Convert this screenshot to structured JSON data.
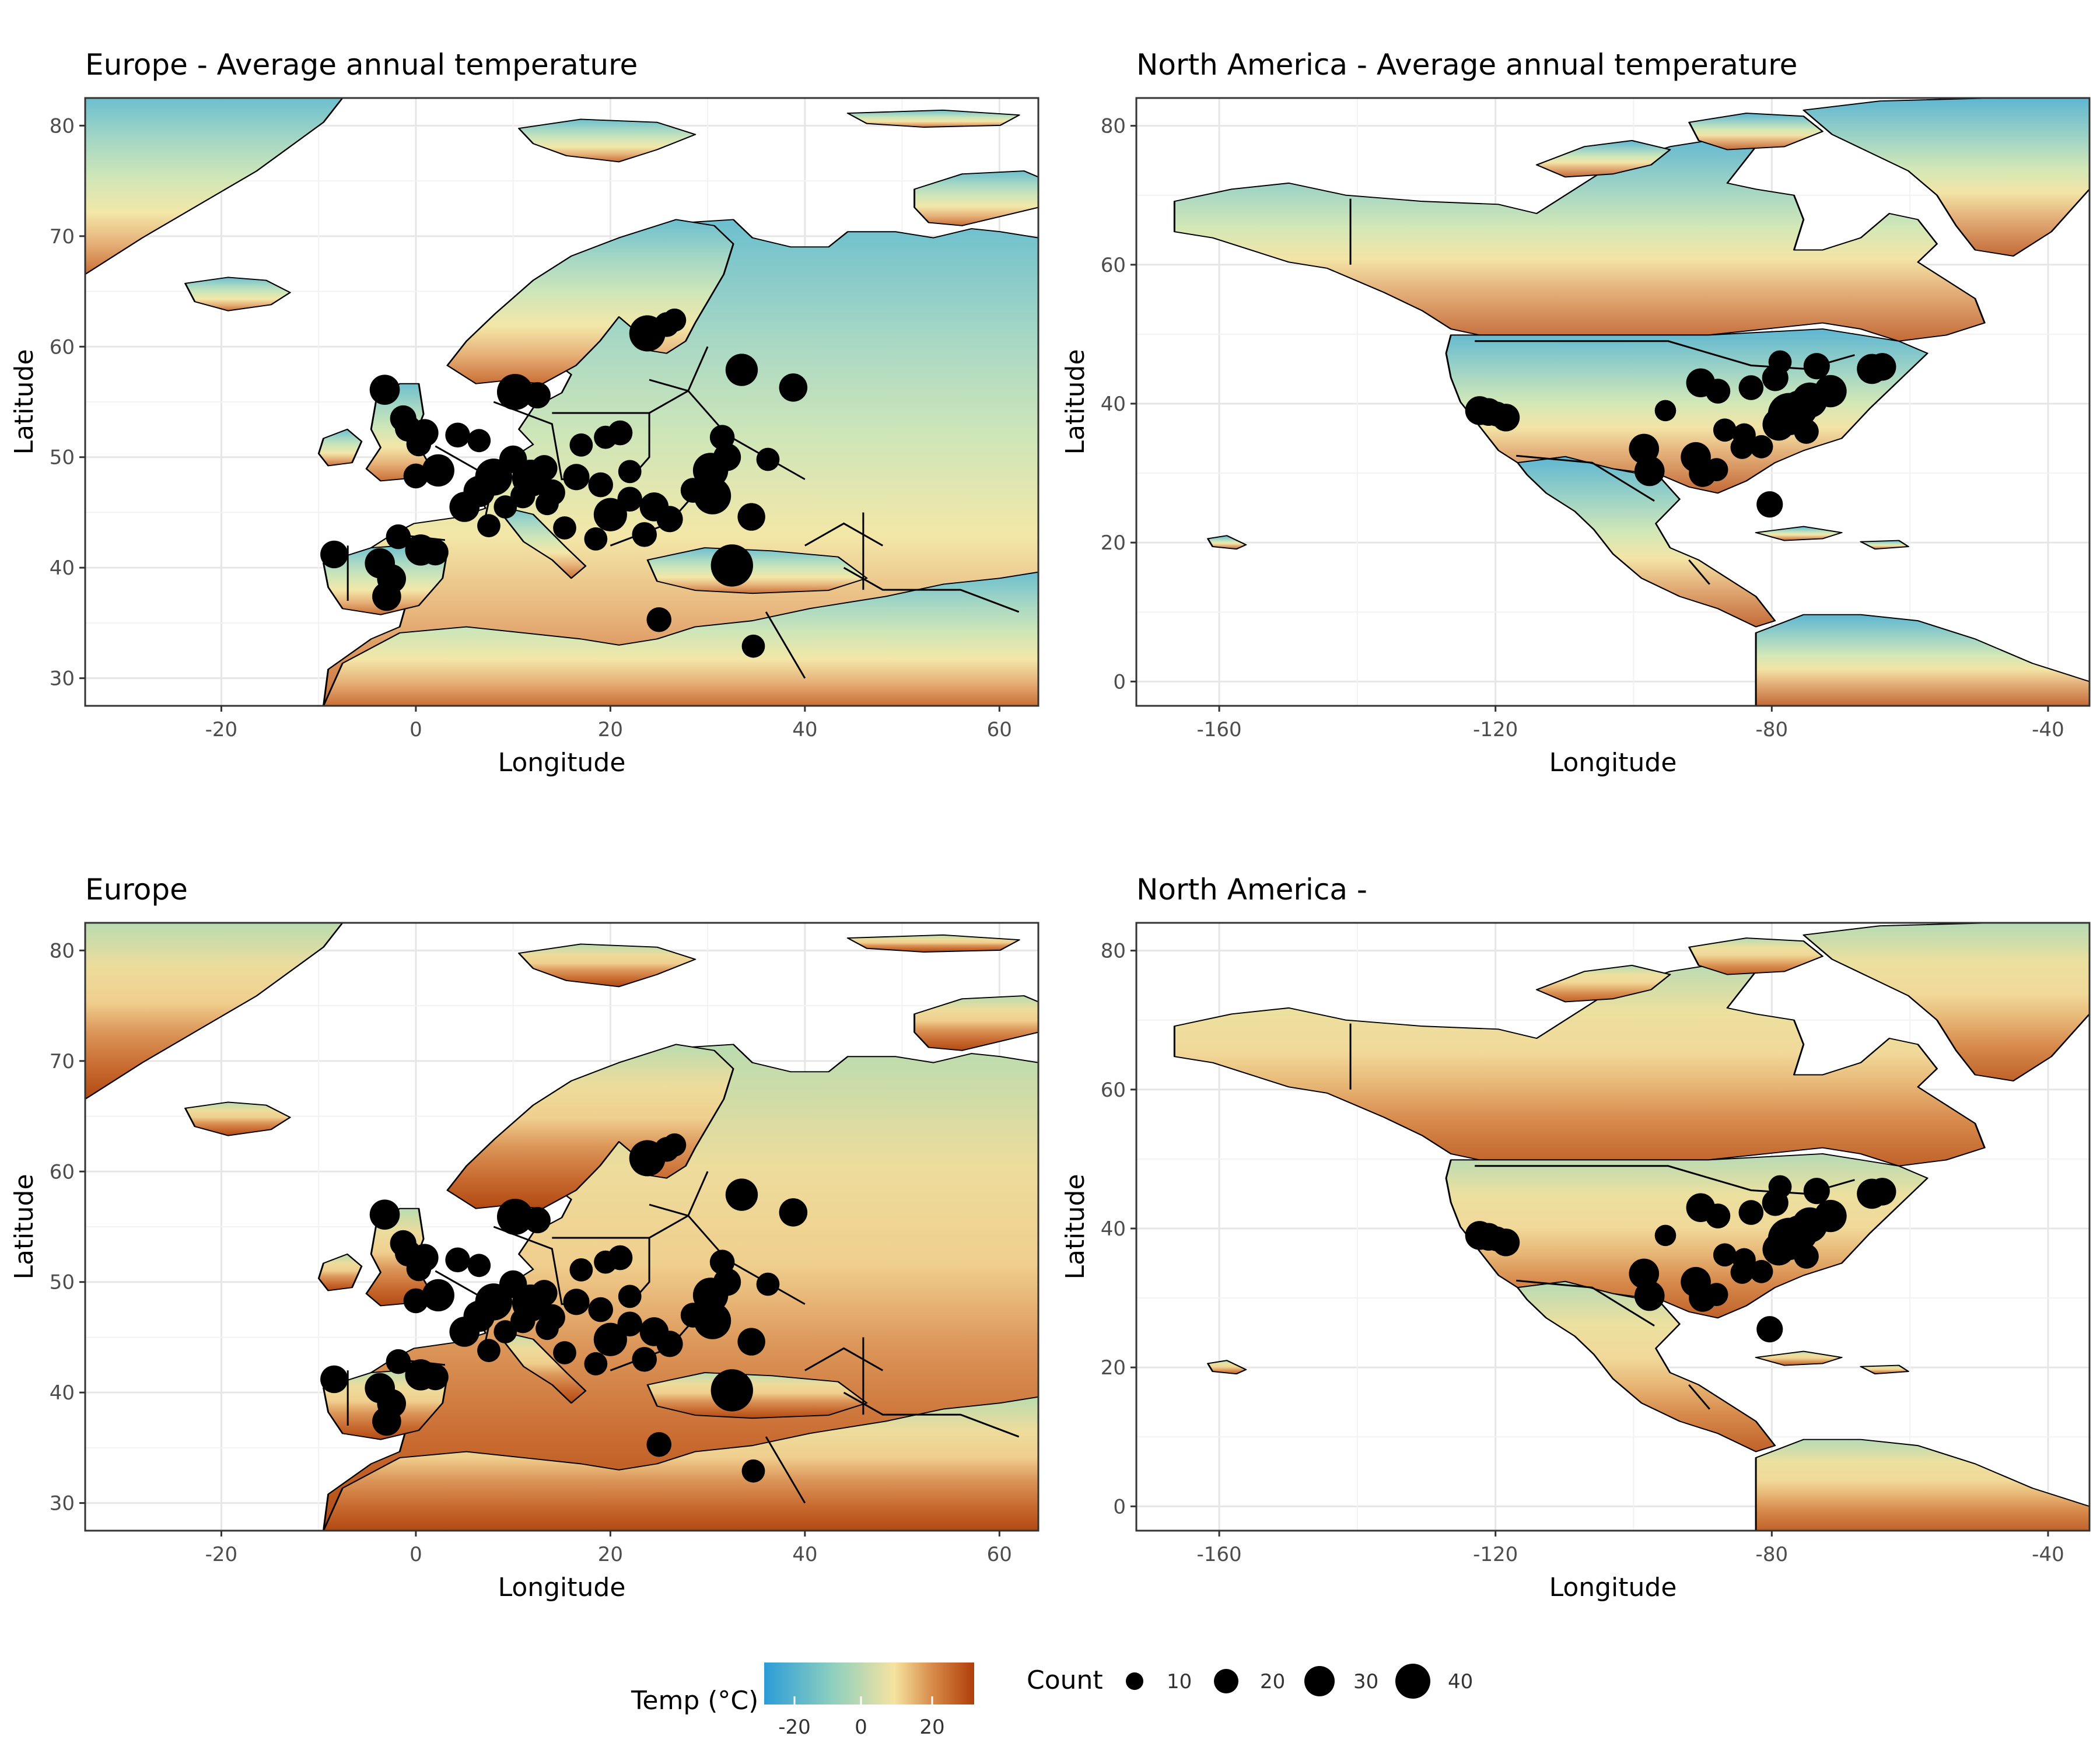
{
  "colors": {
    "cold": "#2b9cd8",
    "cool": "#8dcfc0",
    "mild": "#f6e3a0",
    "hot": "#b5470f",
    "points": "#000000",
    "grid": "#ebebeb",
    "border": "#000000"
  },
  "legend": {
    "temp_title": "Temp (°C)",
    "temp_ticks": [
      "-20",
      "0",
      "20"
    ],
    "count_title": "Count",
    "count_values": [
      "10",
      "20",
      "30",
      "40"
    ]
  },
  "panels": [
    {
      "id": "eu-top",
      "title": "Europe - Average annual temperature",
      "xlabel": "Longitude",
      "ylabel": "Latitude",
      "xticks": [
        "-20",
        "0",
        "20",
        "40",
        "60"
      ],
      "yticks": [
        "30",
        "40",
        "50",
        "60",
        "70",
        "80"
      ],
      "xlim": [
        -34,
        64
      ],
      "ylim": [
        27.5,
        82.5
      ],
      "layer": "annual-temperature"
    },
    {
      "id": "na-top",
      "title": "North America - Average annual temperature",
      "xlabel": "Longitude",
      "ylabel": "Latitude",
      "xticks": [
        "-160",
        "-120",
        "-80",
        "-40"
      ],
      "yticks": [
        "0",
        "20",
        "40",
        "60",
        "80"
      ],
      "xlim": [
        -172,
        -34
      ],
      "ylim": [
        -3.5,
        84
      ],
      "layer": "annual-temperature"
    },
    {
      "id": "eu-bottom",
      "title": "Europe",
      "xlabel": "Longitude",
      "ylabel": "Latitude",
      "xticks": [
        "-20",
        "0",
        "20",
        "40",
        "60"
      ],
      "yticks": [
        "30",
        "40",
        "50",
        "60",
        "70",
        "80"
      ],
      "xlim": [
        -34,
        64
      ],
      "ylim": [
        27.5,
        82.5
      ],
      "layer": "warm-season-temperature"
    },
    {
      "id": "na-bottom",
      "title": "North America -",
      "xlabel": "Longitude",
      "ylabel": "Latitude",
      "xticks": [
        "-160",
        "-120",
        "-80",
        "-40"
      ],
      "yticks": [
        "0",
        "20",
        "40",
        "60",
        "80"
      ],
      "xlim": [
        -172,
        -34
      ],
      "ylim": [
        -3.5,
        84
      ],
      "layer": "warm-season-temperature"
    }
  ],
  "map_points": {
    "europe": [
      {
        "lon": 32.5,
        "lat": 40.2,
        "count": 45
      },
      {
        "lon": 30.5,
        "lat": 46.5,
        "count": 32
      },
      {
        "lon": 30.3,
        "lat": 48.8,
        "count": 28
      },
      {
        "lon": 23.8,
        "lat": 61.2,
        "count": 30
      },
      {
        "lon": 33.5,
        "lat": 57.9,
        "count": 22
      },
      {
        "lon": 38.8,
        "lat": 56.3,
        "count": 15
      },
      {
        "lon": 25.8,
        "lat": 62.0,
        "count": 10
      },
      {
        "lon": 26.6,
        "lat": 62.4,
        "count": 8
      },
      {
        "lon": 10.2,
        "lat": 55.9,
        "count": 30
      },
      {
        "lon": 12.5,
        "lat": 55.6,
        "count": 12
      },
      {
        "lon": 8.0,
        "lat": 48.2,
        "count": 32
      },
      {
        "lon": 11.8,
        "lat": 48.1,
        "count": 32
      },
      {
        "lon": 2.3,
        "lat": 48.8,
        "count": 22
      },
      {
        "lon": 6.5,
        "lat": 46.9,
        "count": 20
      },
      {
        "lon": 5.0,
        "lat": 45.5,
        "count": 18
      },
      {
        "lon": 10.0,
        "lat": 49.8,
        "count": 14
      },
      {
        "lon": 13.2,
        "lat": 49.0,
        "count": 12
      },
      {
        "lon": 14.0,
        "lat": 46.8,
        "count": 12
      },
      {
        "lon": 16.5,
        "lat": 48.2,
        "count": 12
      },
      {
        "lon": 19.0,
        "lat": 47.5,
        "count": 10
      },
      {
        "lon": 20.0,
        "lat": 44.8,
        "count": 24
      },
      {
        "lon": 24.5,
        "lat": 45.5,
        "count": 16
      },
      {
        "lon": 26.1,
        "lat": 44.4,
        "count": 12
      },
      {
        "lon": 28.5,
        "lat": 47.0,
        "count": 10
      },
      {
        "lon": 32.0,
        "lat": 50.0,
        "count": 14
      },
      {
        "lon": 31.5,
        "lat": 51.8,
        "count": 10
      },
      {
        "lon": 34.5,
        "lat": 44.6,
        "count": 14
      },
      {
        "lon": 36.2,
        "lat": 49.8,
        "count": 8
      },
      {
        "lon": 21.0,
        "lat": 52.2,
        "count": 10
      },
      {
        "lon": 19.5,
        "lat": 51.8,
        "count": 8
      },
      {
        "lon": 22.0,
        "lat": 48.7,
        "count": 8
      },
      {
        "lon": 17.0,
        "lat": 51.1,
        "count": 8
      },
      {
        "lon": 23.5,
        "lat": 43.0,
        "count": 10
      },
      {
        "lon": 22.0,
        "lat": 46.2,
        "count": 10
      },
      {
        "lon": -3.7,
        "lat": 40.4,
        "count": 18
      },
      {
        "lon": -2.5,
        "lat": 39.0,
        "count": 16
      },
      {
        "lon": 0.5,
        "lat": 41.6,
        "count": 20
      },
      {
        "lon": -8.4,
        "lat": 41.2,
        "count": 14
      },
      {
        "lon": -3.0,
        "lat": 37.4,
        "count": 16
      },
      {
        "lon": -1.8,
        "lat": 42.8,
        "count": 10
      },
      {
        "lon": -3.2,
        "lat": 56.1,
        "count": 18
      },
      {
        "lon": -1.3,
        "lat": 53.5,
        "count": 12
      },
      {
        "lon": -0.8,
        "lat": 52.6,
        "count": 12
      },
      {
        "lon": 0.9,
        "lat": 52.2,
        "count": 14
      },
      {
        "lon": 0.3,
        "lat": 51.2,
        "count": 10
      },
      {
        "lon": 0.0,
        "lat": 48.3,
        "count": 10
      },
      {
        "lon": 4.3,
        "lat": 52.0,
        "count": 10
      },
      {
        "lon": 6.5,
        "lat": 51.5,
        "count": 8
      },
      {
        "lon": 11.0,
        "lat": 46.5,
        "count": 10
      },
      {
        "lon": 9.2,
        "lat": 45.5,
        "count": 8
      },
      {
        "lon": 7.5,
        "lat": 43.8,
        "count": 8
      },
      {
        "lon": 13.5,
        "lat": 45.8,
        "count": 8
      },
      {
        "lon": 2.0,
        "lat": 41.4,
        "count": 12
      },
      {
        "lon": 15.3,
        "lat": 43.6,
        "count": 8
      },
      {
        "lon": 18.5,
        "lat": 42.6,
        "count": 8
      },
      {
        "lon": 25.0,
        "lat": 35.3,
        "count": 10
      },
      {
        "lon": 34.7,
        "lat": 32.9,
        "count": 8
      }
    ],
    "north_america": [
      {
        "lon": -77.5,
        "lat": 38.5,
        "count": 45
      },
      {
        "lon": -74.5,
        "lat": 40.5,
        "count": 28
      },
      {
        "lon": -71.5,
        "lat": 41.8,
        "count": 22
      },
      {
        "lon": -76.0,
        "lat": 39.3,
        "count": 30
      },
      {
        "lon": -79.0,
        "lat": 37.0,
        "count": 22
      },
      {
        "lon": -65.5,
        "lat": 45.0,
        "count": 18
      },
      {
        "lon": -64.0,
        "lat": 45.3,
        "count": 14
      },
      {
        "lon": -73.5,
        "lat": 45.4,
        "count": 12
      },
      {
        "lon": -79.5,
        "lat": 43.7,
        "count": 12
      },
      {
        "lon": -75.0,
        "lat": 36.0,
        "count": 10
      },
      {
        "lon": -81.5,
        "lat": 33.8,
        "count": 8
      },
      {
        "lon": -84.3,
        "lat": 33.7,
        "count": 8
      },
      {
        "lon": -80.3,
        "lat": 25.5,
        "count": 12
      },
      {
        "lon": -87.8,
        "lat": 41.8,
        "count": 10
      },
      {
        "lon": -90.3,
        "lat": 43.0,
        "count": 16
      },
      {
        "lon": -83.0,
        "lat": 42.3,
        "count": 10
      },
      {
        "lon": -78.8,
        "lat": 46.0,
        "count": 8
      },
      {
        "lon": -95.4,
        "lat": 39.0,
        "count": 6
      },
      {
        "lon": -91.0,
        "lat": 32.3,
        "count": 18
      },
      {
        "lon": -90.0,
        "lat": 30.0,
        "count": 14
      },
      {
        "lon": -97.7,
        "lat": 30.3,
        "count": 18
      },
      {
        "lon": -98.5,
        "lat": 33.5,
        "count": 18
      },
      {
        "lon": -88.0,
        "lat": 30.5,
        "count": 8
      },
      {
        "lon": -122.3,
        "lat": 39.0,
        "count": 16
      },
      {
        "lon": -121.0,
        "lat": 38.8,
        "count": 14
      },
      {
        "lon": -118.5,
        "lat": 38.0,
        "count": 14
      },
      {
        "lon": -119.8,
        "lat": 38.5,
        "count": 10
      },
      {
        "lon": -84.0,
        "lat": 35.5,
        "count": 8
      },
      {
        "lon": -86.8,
        "lat": 36.2,
        "count": 8
      }
    ]
  }
}
